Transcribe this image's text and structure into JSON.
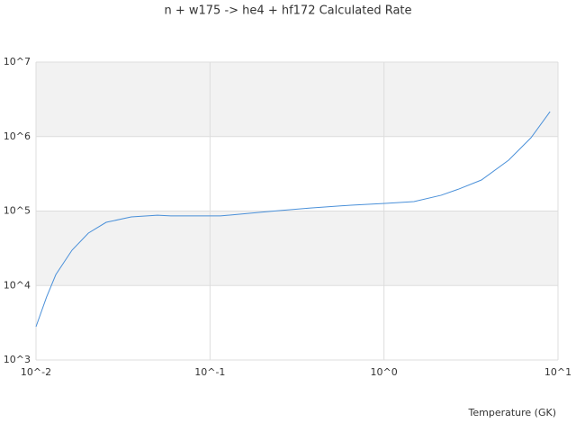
{
  "chart_data": {
    "type": "line",
    "title": "n + w175 -> he4 + hf172 Calculated Rate",
    "x_label": "Temperature (GK)",
    "x": [
      0.01,
      0.0115,
      0.013,
      0.0161,
      0.02,
      0.0253,
      0.0353,
      0.0499,
      0.0595,
      0.1148,
      0.221,
      0.378,
      0.646,
      1.04,
      1.486,
      2.13,
      2.7,
      3.63,
      5.2,
      7.0,
      9.0
    ],
    "series": [
      {
        "name": "n + w175 -> he4 + hf172",
        "color": "#4a90d9",
        "values": [
          2800,
          7000,
          14000,
          29800,
          50600,
          70600,
          83400,
          88000,
          86000,
          86000,
          99000,
          110000,
          120000,
          127000,
          134000,
          163000,
          198000,
          261000,
          482000,
          966000,
          2160000
        ]
      }
    ],
    "xlim": [
      0.01,
      10
    ],
    "xticks": [
      {
        "value": 0.01,
        "label": "10^-2"
      },
      {
        "value": 0.1,
        "label": "10^-1"
      },
      {
        "value": 1,
        "label": "10^0"
      },
      {
        "value": 10,
        "label": "10^1"
      }
    ],
    "ylim": [
      1000,
      10000000
    ],
    "yticks": [
      {
        "value": 1000,
        "label": "10^3"
      },
      {
        "value": 10000,
        "label": "10^4"
      },
      {
        "value": 100000,
        "label": "10^5"
      },
      {
        "value": 1000000,
        "label": "10^6"
      },
      {
        "value": 10000000,
        "label": "10^7"
      }
    ],
    "xscale": "log",
    "yscale": "log",
    "grid": true
  }
}
